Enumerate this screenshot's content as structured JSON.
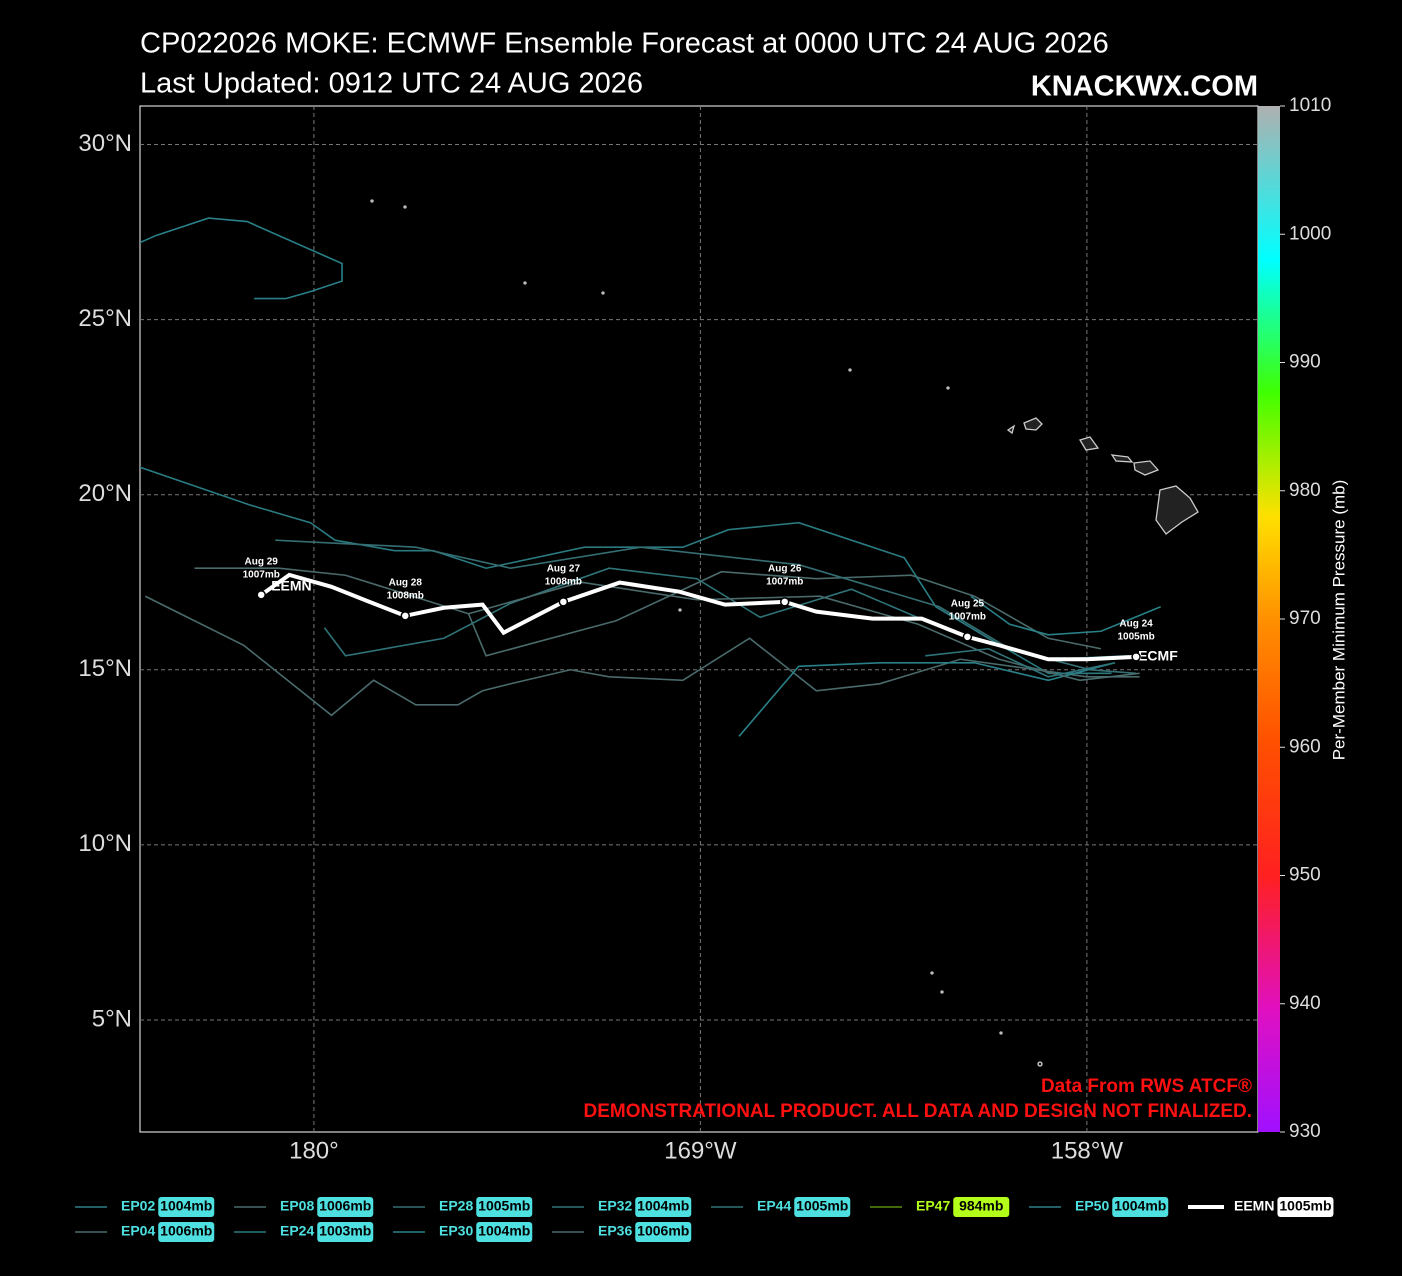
{
  "chart_data": {
    "type": "track-map",
    "title": "CP022026 MOKE: ECMWF Ensemble Forecast at 0000 UTC 24 AUG 2026",
    "subtitle": "Last Updated: 0912 UTC 24 AUG 2026",
    "brand": "KNACKWX.COM",
    "xlim": [
      175.05,
      206.87
    ],
    "ylim": [
      1.8,
      31.1
    ],
    "xticks": [
      {
        "value": 180,
        "label": "180°"
      },
      {
        "value": 191,
        "label": "169°W"
      },
      {
        "value": 202,
        "label": "158°W"
      }
    ],
    "yticks": [
      {
        "value": 5,
        "label": "5°N"
      },
      {
        "value": 10,
        "label": "10°N"
      },
      {
        "value": 15,
        "label": "15°N"
      },
      {
        "value": 20,
        "label": "20°N"
      },
      {
        "value": 25,
        "label": "25°N"
      },
      {
        "value": 30,
        "label": "30°N"
      }
    ],
    "grid": true,
    "colorbar_label": "Per-Member Minimum Pressure (mb)",
    "colorbar_lim": [
      930,
      1010
    ],
    "colorbar_ticks": [
      930,
      940,
      950,
      960,
      970,
      980,
      990,
      1000,
      1010
    ],
    "series": [
      {
        "name": "EP02",
        "pressure": "1004mb",
        "color": "#2a8088",
        "label_color": "#4ee0e0",
        "lon": [
          175.05,
          175.5,
          177.0,
          178.1,
          180.8,
          180.8,
          179.9,
          179.2,
          178.3
        ],
        "lat": [
          27.2,
          27.4,
          27.9,
          27.8,
          26.6,
          26.1,
          25.8,
          25.6,
          25.6
        ]
      },
      {
        "name": "EP04",
        "pressure": "1006mb",
        "color": "#4a6a6c",
        "label_color": "#4ee0e0",
        "lon": [
          175.2,
          178.0,
          180.5,
          181.7,
          182.9,
          184.1,
          184.8,
          185.6,
          187.3,
          188.4,
          190.5,
          192.4,
          194.3,
          196.1,
          198.4,
          202.0,
          203.5
        ],
        "lat": [
          17.1,
          15.7,
          13.7,
          14.7,
          14.0,
          14.0,
          14.4,
          14.6,
          15.0,
          14.8,
          14.7,
          15.9,
          14.4,
          14.6,
          15.3,
          14.8,
          14.8
        ]
      },
      {
        "name": "EP08",
        "pressure": "1006mb",
        "color": "#4a6a6c",
        "label_color": "#4ee0e0",
        "lon": [
          176.6,
          179.0,
          180.9,
          184.4,
          184.9,
          188.6,
          191.6,
          194.3,
          197.0,
          198.8,
          200.9,
          202.4
        ],
        "lat": [
          17.9,
          17.9,
          17.7,
          16.6,
          15.4,
          16.4,
          17.8,
          17.6,
          17.7,
          17.1,
          15.9,
          15.6
        ]
      },
      {
        "name": "EP24",
        "pressure": "1003mb",
        "color": "#2a7a80",
        "label_color": "#4ee0e0",
        "lon": [
          175.0,
          178.2,
          179.9,
          180.6,
          182.3,
          183.4,
          184.9,
          187.7,
          190.5,
          191.8,
          193.8,
          196.8,
          197.7,
          199.2,
          200.9,
          202.7
        ],
        "lat": [
          20.8,
          19.7,
          19.2,
          18.7,
          18.4,
          18.4,
          17.9,
          18.5,
          18.5,
          19.0,
          19.2,
          18.2,
          16.8,
          15.9,
          14.9,
          14.9
        ]
      },
      {
        "name": "EP28",
        "pressure": "1005mb",
        "color": "#356e72",
        "label_color": "#4ee0e0",
        "lon": [
          178.9,
          182.9,
          185.6,
          189.3,
          193.8,
          197.8,
          199.8,
          202.1,
          203.4
        ],
        "lat": [
          18.7,
          18.5,
          17.9,
          18.5,
          18.0,
          16.8,
          15.6,
          15.0,
          14.9
        ]
      },
      {
        "name": "EP30",
        "pressure": "1004mb",
        "color": "#2a8088",
        "label_color": "#4ee0e0",
        "lon": [
          192.1,
          193.8,
          196.1,
          198.8,
          200.9,
          202.8
        ],
        "lat": [
          13.1,
          15.1,
          15.2,
          15.2,
          14.7,
          15.2
        ]
      },
      {
        "name": "EP32",
        "pressure": "1004mb",
        "color": "#2f7479",
        "label_color": "#4ee0e0",
        "lon": [
          180.3,
          180.9,
          183.7,
          185.6,
          188.4,
          190.9,
          192.7,
          195.3,
          198.1,
          200.9,
          203.2
        ],
        "lat": [
          16.2,
          15.4,
          15.9,
          16.9,
          17.9,
          17.6,
          16.5,
          17.3,
          16.1,
          15.3,
          15.4
        ]
      },
      {
        "name": "EP36",
        "pressure": "1006mb",
        "color": "#4a6a6c",
        "label_color": "#4ee0e0",
        "lon": [
          184.4,
          187.6,
          190.9,
          194.4,
          197.2,
          199.5,
          201.8,
          203.5
        ],
        "lat": [
          16.6,
          17.5,
          17.0,
          17.1,
          16.3,
          15.3,
          14.7,
          14.9
        ]
      },
      {
        "name": "EP44",
        "pressure": "1005mb",
        "color": "#2f7479",
        "label_color": "#4ee0e0",
        "lon": [
          197.4,
          199.2,
          200.9,
          202.8
        ],
        "lat": [
          15.4,
          15.6,
          14.8,
          15.2
        ]
      },
      {
        "name": "EP47",
        "pressure": "984mb",
        "color": "#5a8a10",
        "label_color": "#b4ff1a",
        "lon": [],
        "lat": []
      },
      {
        "name": "EP50",
        "pressure": "1004mb",
        "color": "#2a8088",
        "label_color": "#4ee0e0",
        "lon": [
          198.7,
          199.8,
          200.9,
          202.4,
          204.1
        ],
        "lat": [
          17.1,
          16.3,
          16.0,
          16.1,
          16.8
        ]
      },
      {
        "name": "EEMN",
        "pressure": "1005mb",
        "color": "#ffffff",
        "label_color": "#ffffff",
        "start_label": "ECMF",
        "end_label": "EEMN",
        "lon": [
          203.4,
          202.0,
          200.9,
          199.5,
          198.6,
          197.3,
          195.9,
          194.3,
          193.4,
          191.7,
          190.4,
          188.7,
          187.1,
          185.4,
          184.8,
          183.7,
          182.6,
          181.5,
          180.5,
          179.3,
          178.5
        ],
        "lat": [
          15.37,
          15.3,
          15.3,
          15.7,
          15.94,
          16.46,
          16.46,
          16.66,
          16.94,
          16.86,
          17.23,
          17.49,
          16.94,
          16.06,
          16.86,
          16.77,
          16.54,
          16.97,
          17.37,
          17.71,
          17.14
        ]
      }
    ],
    "annotations": [
      {
        "lon": 203.4,
        "lat": 15.37,
        "date": "Aug 24",
        "pressure": "1005mb"
      },
      {
        "lon": 198.6,
        "lat": 15.94,
        "date": "Aug 25",
        "pressure": "1007mb"
      },
      {
        "lon": 193.4,
        "lat": 16.94,
        "date": "Aug 26",
        "pressure": "1007mb"
      },
      {
        "lon": 187.1,
        "lat": 16.94,
        "date": "Aug 27",
        "pressure": "1008mb"
      },
      {
        "lon": 182.6,
        "lat": 16.54,
        "date": "Aug 28",
        "pressure": "1008mb"
      },
      {
        "lon": 178.5,
        "lat": 17.14,
        "date": "Aug 29",
        "pressure": "1007mb"
      }
    ],
    "source": "Data From RWS ATCF®",
    "disclaimer": "DEMONSTRATIONAL PRODUCT. ALL DATA AND DESIGN NOT FINALIZED."
  }
}
